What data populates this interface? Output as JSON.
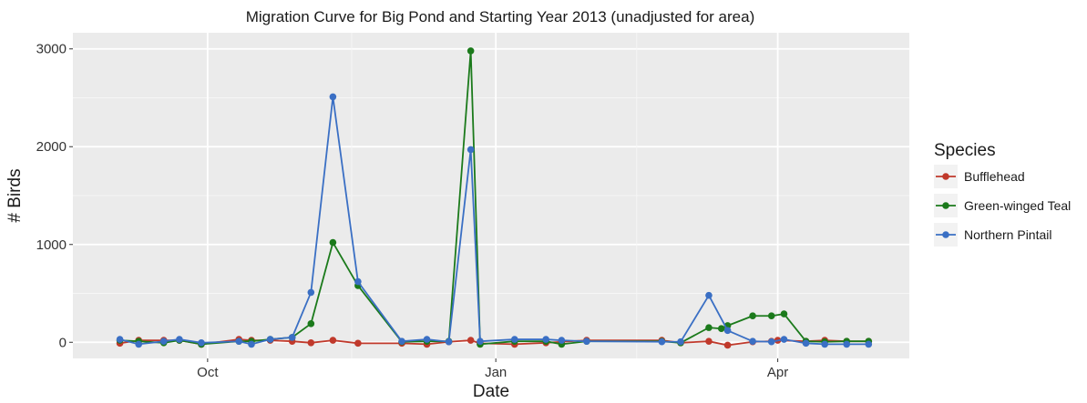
{
  "chart_data": {
    "type": "line",
    "title": "Migration Curve for Big Pond and Starting Year 2013 (unadjusted for area)",
    "xlabel": "Date",
    "ylabel": "# Birds",
    "x_ticks": [
      {
        "label": "Oct",
        "date": "2013-10-01"
      },
      {
        "label": "Jan",
        "date": "2014-01-01"
      },
      {
        "label": "Apr",
        "date": "2014-04-01"
      }
    ],
    "y_ticks": [
      "0",
      "1000",
      "2000",
      "3000"
    ],
    "xlim": [
      "2013-08-19",
      "2014-05-13"
    ],
    "ylim": [
      -165,
      3165
    ],
    "grid": true,
    "panel_background": "#ebebeb",
    "legend": {
      "title": "Species",
      "position": "right"
    },
    "series": [
      {
        "name": "Bufflehead",
        "color": "#c0392b",
        "points": [
          [
            "2013-09-03",
            -10
          ],
          [
            "2013-09-09",
            20
          ],
          [
            "2013-09-17",
            20
          ],
          [
            "2013-09-22",
            20
          ],
          [
            "2013-09-29",
            -20
          ],
          [
            "2013-10-11",
            30
          ],
          [
            "2013-10-15",
            20
          ],
          [
            "2013-10-21",
            20
          ],
          [
            "2013-10-28",
            10
          ],
          [
            "2013-11-03",
            -5
          ],
          [
            "2013-11-10",
            20
          ],
          [
            "2013-11-18",
            -10
          ],
          [
            "2013-12-02",
            -10
          ],
          [
            "2013-12-10",
            -20
          ],
          [
            "2013-12-17",
            5
          ],
          [
            "2013-12-24",
            20
          ],
          [
            "2013-12-27",
            -10
          ],
          [
            "2014-01-07",
            -20
          ],
          [
            "2014-01-17",
            -5
          ],
          [
            "2014-01-22",
            5
          ],
          [
            "2014-01-30",
            20
          ],
          [
            "2014-02-23",
            20
          ],
          [
            "2014-02-29",
            -5
          ],
          [
            "2014-03-10",
            10
          ],
          [
            "2014-03-16",
            -30
          ],
          [
            "2014-03-24",
            5
          ],
          [
            "2014-03-30",
            10
          ],
          [
            "2014-04-01",
            20
          ],
          [
            "2014-04-10",
            10
          ],
          [
            "2014-04-16",
            20
          ],
          [
            "2014-04-23",
            10
          ],
          [
            "2014-04-30",
            10
          ]
        ]
      },
      {
        "name": "Green-winged Teal",
        "color": "#1b7a1b",
        "points": [
          [
            "2013-09-03",
            20
          ],
          [
            "2013-09-09",
            10
          ],
          [
            "2013-09-17",
            -5
          ],
          [
            "2013-09-22",
            20
          ],
          [
            "2013-09-29",
            -20
          ],
          [
            "2013-10-11",
            10
          ],
          [
            "2013-10-15",
            10
          ],
          [
            "2013-10-21",
            30
          ],
          [
            "2013-10-28",
            50
          ],
          [
            "2013-11-03",
            190
          ],
          [
            "2013-11-10",
            1020
          ],
          [
            "2013-11-18",
            580
          ],
          [
            "2013-12-02",
            5
          ],
          [
            "2013-12-10",
            10
          ],
          [
            "2013-12-17",
            10
          ],
          [
            "2013-12-24",
            2980
          ],
          [
            "2013-12-27",
            -20
          ],
          [
            "2014-01-07",
            10
          ],
          [
            "2014-01-17",
            10
          ],
          [
            "2014-01-22",
            -20
          ],
          [
            "2014-01-30",
            10
          ],
          [
            "2014-02-23",
            10
          ],
          [
            "2014-02-29",
            -5
          ],
          [
            "2014-03-10",
            150
          ],
          [
            "2014-03-14",
            140
          ],
          [
            "2014-03-16",
            170
          ],
          [
            "2014-03-24",
            270
          ],
          [
            "2014-03-30",
            270
          ],
          [
            "2014-04-03",
            290
          ],
          [
            "2014-04-10",
            10
          ],
          [
            "2014-04-16",
            5
          ],
          [
            "2014-04-23",
            10
          ],
          [
            "2014-04-30",
            10
          ]
        ]
      },
      {
        "name": "Northern Pintail",
        "color": "#3a6fc4",
        "points": [
          [
            "2013-09-03",
            30
          ],
          [
            "2013-09-09",
            -20
          ],
          [
            "2013-09-17",
            10
          ],
          [
            "2013-09-22",
            30
          ],
          [
            "2013-09-29",
            -5
          ],
          [
            "2013-10-11",
            10
          ],
          [
            "2013-10-15",
            -20
          ],
          [
            "2013-10-21",
            30
          ],
          [
            "2013-10-28",
            50
          ],
          [
            "2013-11-03",
            510
          ],
          [
            "2013-11-10",
            2510
          ],
          [
            "2013-11-18",
            620
          ],
          [
            "2013-12-02",
            10
          ],
          [
            "2013-12-10",
            30
          ],
          [
            "2013-12-17",
            5
          ],
          [
            "2013-12-24",
            1970
          ],
          [
            "2013-12-27",
            10
          ],
          [
            "2014-01-07",
            30
          ],
          [
            "2014-01-17",
            30
          ],
          [
            "2014-01-22",
            20
          ],
          [
            "2014-01-30",
            10
          ],
          [
            "2014-02-23",
            5
          ],
          [
            "2014-02-29",
            5
          ],
          [
            "2014-03-10",
            480
          ],
          [
            "2014-03-16",
            120
          ],
          [
            "2014-03-24",
            10
          ],
          [
            "2014-03-30",
            5
          ],
          [
            "2014-04-03",
            30
          ],
          [
            "2014-04-10",
            -10
          ],
          [
            "2014-04-16",
            -20
          ],
          [
            "2014-04-23",
            -20
          ],
          [
            "2014-04-30",
            -20
          ]
        ]
      }
    ]
  }
}
